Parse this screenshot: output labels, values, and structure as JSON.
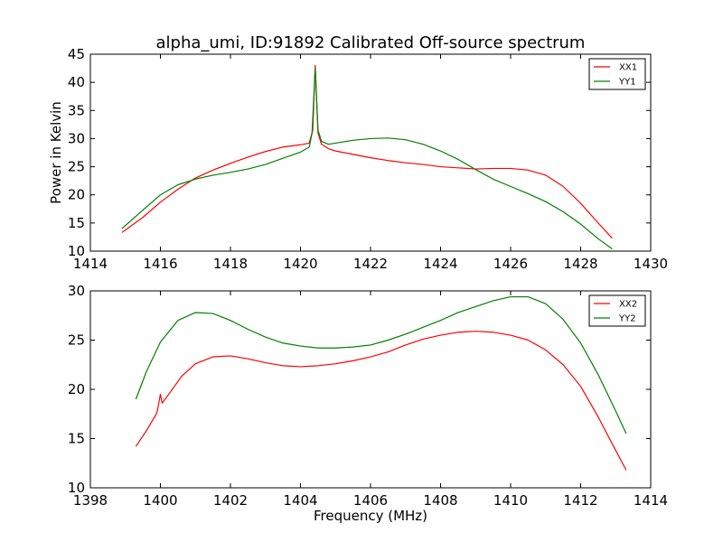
{
  "title": "alpha_umi, ID:91892 Calibrated Off-source spectrum",
  "colors": {
    "series_red": "#ff0000",
    "series_green": "#008000"
  },
  "chart_data": [
    {
      "type": "line",
      "ylabel": "Power in Kelvin",
      "xlabel": "",
      "xlim": [
        1414,
        1430
      ],
      "ylim": [
        10,
        45
      ],
      "xticks": [
        "1414",
        "1416",
        "1418",
        "1420",
        "1422",
        "1424",
        "1426",
        "1428",
        "1430"
      ],
      "yticks": [
        "10",
        "15",
        "20",
        "25",
        "30",
        "35",
        "40",
        "45"
      ],
      "legend_position": "top-right",
      "series": [
        {
          "name": "XX1",
          "color": "#ff0000",
          "points": [
            [
              1414.9,
              13.3
            ],
            [
              1415.5,
              16.0
            ],
            [
              1416.0,
              18.7
            ],
            [
              1416.5,
              21.0
            ],
            [
              1417.0,
              23.0
            ],
            [
              1417.5,
              24.4
            ],
            [
              1418.0,
              25.6
            ],
            [
              1418.5,
              26.7
            ],
            [
              1419.0,
              27.7
            ],
            [
              1419.5,
              28.5
            ],
            [
              1420.0,
              28.9
            ],
            [
              1420.25,
              29.2
            ],
            [
              1420.35,
              31.5
            ],
            [
              1420.42,
              43.0
            ],
            [
              1420.5,
              31.0
            ],
            [
              1420.6,
              29.0
            ],
            [
              1420.8,
              28.2
            ],
            [
              1421.0,
              27.8
            ],
            [
              1421.5,
              27.2
            ],
            [
              1422.0,
              26.6
            ],
            [
              1422.5,
              26.1
            ],
            [
              1423.0,
              25.7
            ],
            [
              1423.5,
              25.4
            ],
            [
              1424.0,
              25.0
            ],
            [
              1424.5,
              24.8
            ],
            [
              1425.0,
              24.6
            ],
            [
              1425.5,
              24.7
            ],
            [
              1426.0,
              24.7
            ],
            [
              1426.5,
              24.4
            ],
            [
              1427.0,
              23.5
            ],
            [
              1427.5,
              21.5
            ],
            [
              1428.0,
              18.5
            ],
            [
              1428.5,
              15.0
            ],
            [
              1428.9,
              12.3
            ]
          ]
        },
        {
          "name": "YY1",
          "color": "#008000",
          "points": [
            [
              1414.9,
              14.0
            ],
            [
              1415.5,
              17.3
            ],
            [
              1416.0,
              20.0
            ],
            [
              1416.5,
              21.8
            ],
            [
              1417.0,
              22.8
            ],
            [
              1417.5,
              23.5
            ],
            [
              1418.0,
              24.0
            ],
            [
              1418.5,
              24.6
            ],
            [
              1419.0,
              25.4
            ],
            [
              1419.5,
              26.5
            ],
            [
              1420.0,
              27.6
            ],
            [
              1420.25,
              28.5
            ],
            [
              1420.33,
              31.0
            ],
            [
              1420.42,
              42.5
            ],
            [
              1420.5,
              31.5
            ],
            [
              1420.6,
              29.5
            ],
            [
              1420.8,
              29.0
            ],
            [
              1421.0,
              29.2
            ],
            [
              1421.5,
              29.7
            ],
            [
              1422.0,
              30.0
            ],
            [
              1422.5,
              30.1
            ],
            [
              1423.0,
              29.8
            ],
            [
              1423.5,
              29.0
            ],
            [
              1424.0,
              27.8
            ],
            [
              1424.5,
              26.3
            ],
            [
              1425.0,
              24.5
            ],
            [
              1425.5,
              22.8
            ],
            [
              1426.0,
              21.5
            ],
            [
              1426.5,
              20.2
            ],
            [
              1427.0,
              18.8
            ],
            [
              1427.5,
              17.0
            ],
            [
              1428.0,
              14.8
            ],
            [
              1428.5,
              12.2
            ],
            [
              1428.9,
              10.4
            ]
          ]
        }
      ]
    },
    {
      "type": "line",
      "ylabel": "",
      "xlabel": "Frequency (MHz)",
      "xlim": [
        1398,
        1414
      ],
      "ylim": [
        10,
        30
      ],
      "xticks": [
        "1398",
        "1400",
        "1402",
        "1404",
        "1406",
        "1408",
        "1410",
        "1412",
        "1414"
      ],
      "yticks": [
        "10",
        "15",
        "20",
        "25",
        "30"
      ],
      "legend_position": "top-right",
      "series": [
        {
          "name": "XX2",
          "color": "#ff0000",
          "points": [
            [
              1399.3,
              14.2
            ],
            [
              1399.6,
              15.8
            ],
            [
              1399.9,
              17.6
            ],
            [
              1400.0,
              19.5
            ],
            [
              1400.05,
              18.6
            ],
            [
              1400.3,
              19.8
            ],
            [
              1400.6,
              21.3
            ],
            [
              1401.0,
              22.6
            ],
            [
              1401.5,
              23.3
            ],
            [
              1402.0,
              23.4
            ],
            [
              1402.5,
              23.1
            ],
            [
              1403.0,
              22.7
            ],
            [
              1403.5,
              22.4
            ],
            [
              1404.0,
              22.3
            ],
            [
              1404.5,
              22.4
            ],
            [
              1405.0,
              22.6
            ],
            [
              1405.5,
              22.9
            ],
            [
              1406.0,
              23.3
            ],
            [
              1406.5,
              23.8
            ],
            [
              1407.0,
              24.5
            ],
            [
              1407.5,
              25.1
            ],
            [
              1408.0,
              25.5
            ],
            [
              1408.5,
              25.8
            ],
            [
              1409.0,
              25.9
            ],
            [
              1409.5,
              25.8
            ],
            [
              1410.0,
              25.5
            ],
            [
              1410.5,
              25.0
            ],
            [
              1411.0,
              24.0
            ],
            [
              1411.5,
              22.5
            ],
            [
              1412.0,
              20.3
            ],
            [
              1412.5,
              17.2
            ],
            [
              1413.0,
              13.8
            ],
            [
              1413.3,
              11.8
            ]
          ]
        },
        {
          "name": "YY2",
          "color": "#008000",
          "points": [
            [
              1399.3,
              19.0
            ],
            [
              1399.6,
              21.8
            ],
            [
              1400.0,
              24.8
            ],
            [
              1400.5,
              27.0
            ],
            [
              1401.0,
              27.8
            ],
            [
              1401.5,
              27.7
            ],
            [
              1402.0,
              27.0
            ],
            [
              1402.5,
              26.1
            ],
            [
              1403.0,
              25.3
            ],
            [
              1403.5,
              24.7
            ],
            [
              1404.0,
              24.4
            ],
            [
              1404.5,
              24.2
            ],
            [
              1405.0,
              24.2
            ],
            [
              1405.5,
              24.3
            ],
            [
              1406.0,
              24.5
            ],
            [
              1406.5,
              25.0
            ],
            [
              1407.0,
              25.6
            ],
            [
              1407.5,
              26.3
            ],
            [
              1408.0,
              27.0
            ],
            [
              1408.5,
              27.8
            ],
            [
              1409.0,
              28.4
            ],
            [
              1409.5,
              29.0
            ],
            [
              1410.0,
              29.4
            ],
            [
              1410.5,
              29.4
            ],
            [
              1411.0,
              28.7
            ],
            [
              1411.5,
              27.1
            ],
            [
              1412.0,
              24.7
            ],
            [
              1412.5,
              21.5
            ],
            [
              1413.0,
              17.8
            ],
            [
              1413.3,
              15.5
            ]
          ]
        }
      ]
    }
  ]
}
